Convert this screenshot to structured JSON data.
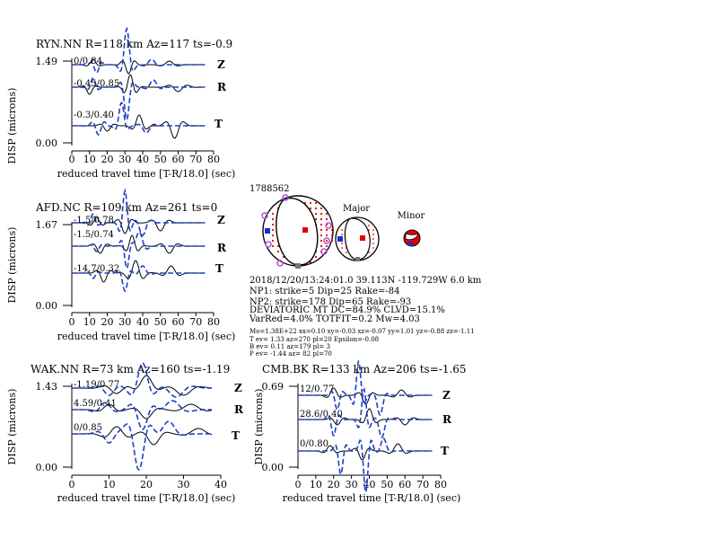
{
  "colors": {
    "observed": "#000000",
    "synthetic": "#1f3fc4",
    "label_red": "#a31515",
    "beachball_red": "#e60000",
    "station_violet": "#b44cd9",
    "axis_blue": "#1a2fd0",
    "grey": "#777777"
  },
  "common": {
    "xlabel": "reduced travel time [T-R/18.0] (sec)",
    "ylabel": "DISP (microns)",
    "components": [
      "Z",
      "R",
      "T"
    ]
  },
  "panels": [
    {
      "id": "ryn",
      "title": "RYN.NN R=118 km Az=117 ts=-0.9",
      "ymax_label": "1.49",
      "ymin_label": "0.00",
      "xticks": [
        "0",
        "10",
        "20",
        "30",
        "40",
        "50",
        "60",
        "70",
        "80"
      ],
      "xmax": 80,
      "labels": [
        "0/0.84",
        "-0.45/0.85",
        "-0.3/0.40"
      ]
    },
    {
      "id": "afd",
      "title": "AFD.NC R=109 km Az=261 ts=0",
      "ymax_label": "1.67",
      "ymin_label": "0.00",
      "xticks": [
        "0",
        "10",
        "20",
        "30",
        "40",
        "50",
        "60",
        "70",
        "80"
      ],
      "xmax": 80,
      "labels": [
        "-1.5/0.78",
        "-1.5/0.74",
        "-14.7/0.32"
      ]
    },
    {
      "id": "wak",
      "title": "WAK.NN R=73 km Az=160 ts=-1.19",
      "ymax_label": "1.43",
      "ymin_label": "0.00",
      "xticks": [
        "0",
        "10",
        "20",
        "30",
        "40"
      ],
      "xmax": 40,
      "labels": [
        "-1.19/0.77",
        "4.59/0.41",
        "0/0.85"
      ]
    },
    {
      "id": "cmb",
      "title": "CMB.BK R=133 km Az=206 ts=-1.65",
      "ymax_label": "0.69",
      "ymin_label": "0.00",
      "xticks": [
        "0",
        "10",
        "20",
        "30",
        "40",
        "50",
        "60",
        "70",
        "80"
      ],
      "xmax": 80,
      "labels": [
        "12/0.77",
        "28.6/0.40",
        "0/0.80"
      ]
    }
  ],
  "mechanism": {
    "event_id": "1788562",
    "major_label": "Major",
    "minor_label": "Minor",
    "lines": [
      "2018/12/20/13:24:01.0 39.113N -119.729W 6.0 km",
      "NP1: strike=5 Dip=25 Rake=-84",
      "NP2: strike=178 Dip=65 Rake=-93",
      "DEVIATORIC MT DC=84.9% CLVD=15.1%",
      "VarRed=4.0% TOTFIT=0.2 Mw=4.03"
    ],
    "small_lines": [
      "Mo=1.38E+22 xx=0.10 xy=-0.03 xz=-0.07 yy=1.01 yz=-0.88 zz=-1.11",
      "T ev=  1.33 az=270 pl=20 Epsilon=-0.08",
      "B ev=  0.11 az=179 pl= 3",
      "P ev= -1.44 az= 82 pl=70"
    ]
  }
}
